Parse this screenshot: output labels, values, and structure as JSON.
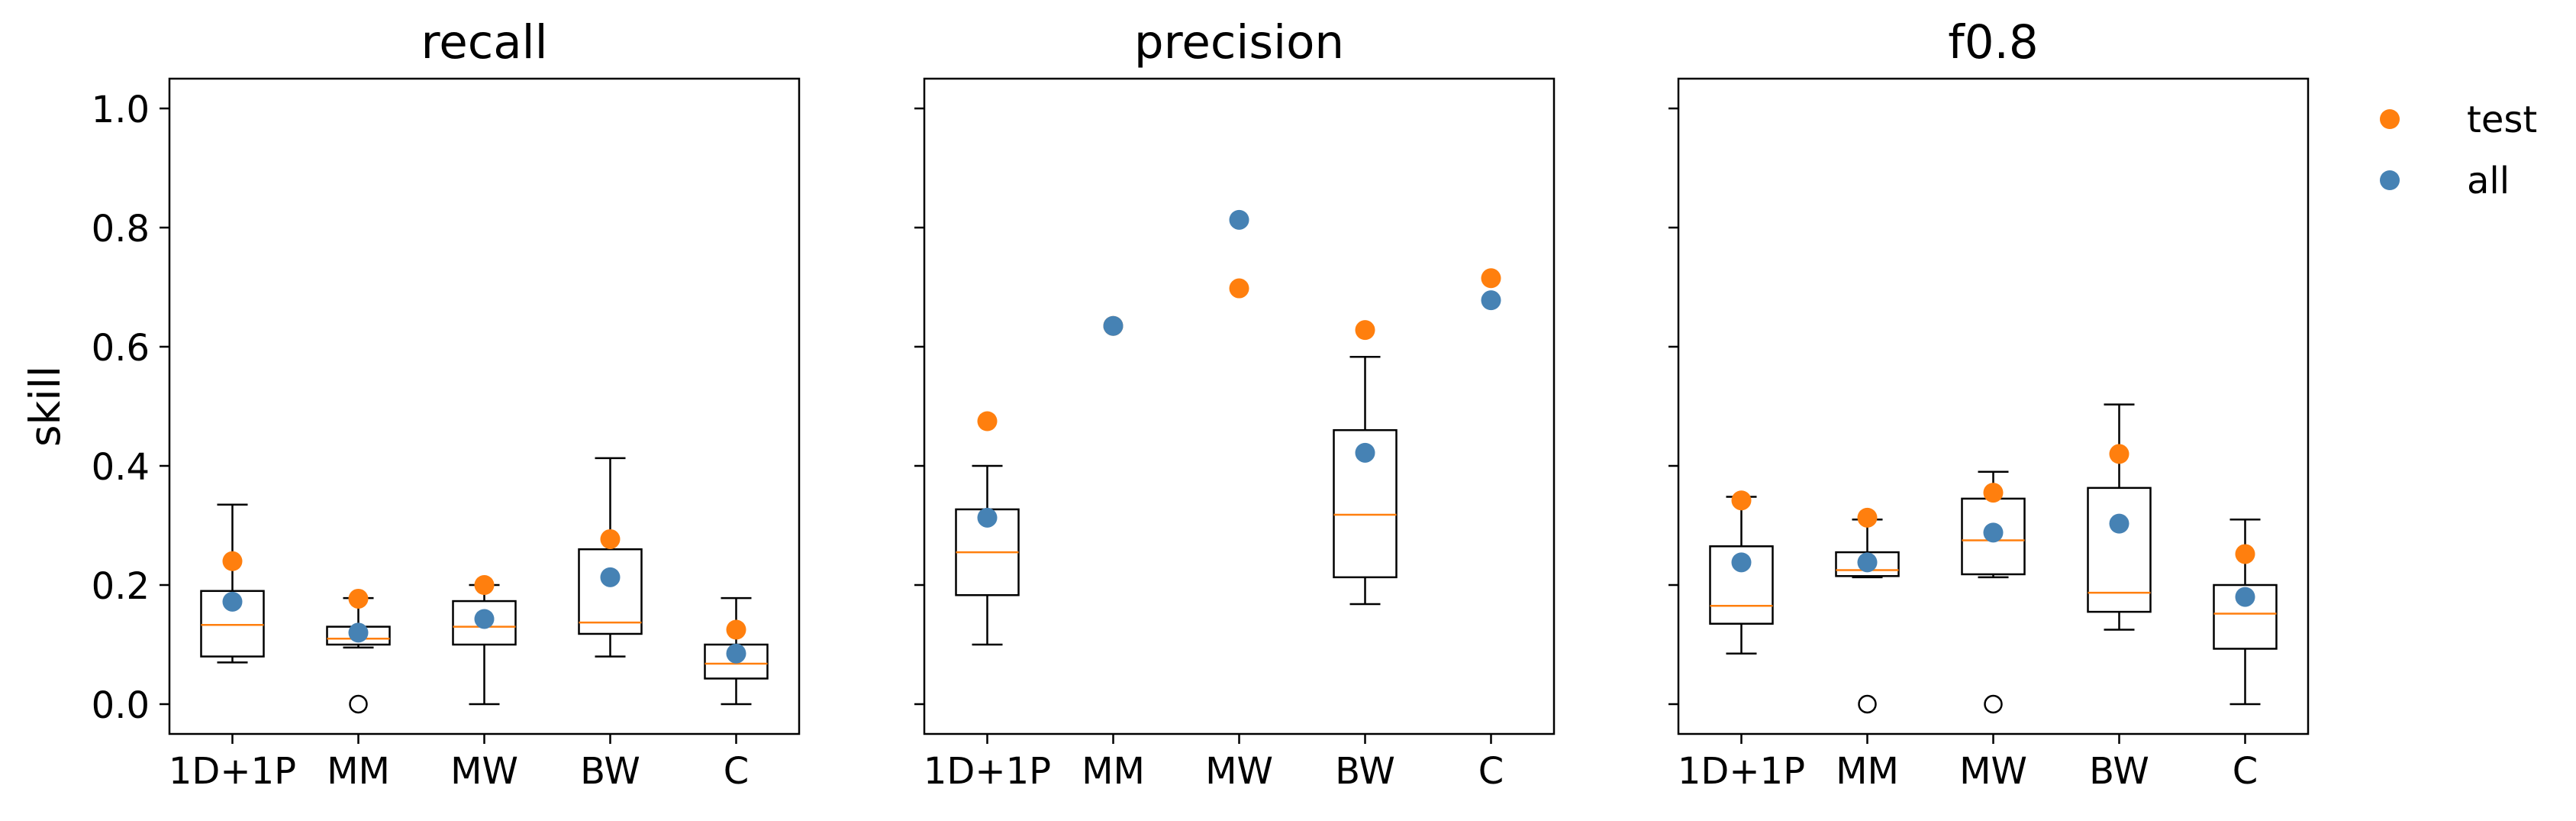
{
  "chart_data": {
    "type": "box",
    "y_label": "skill",
    "y_range": [
      -0.05,
      1.05
    ],
    "y_ticks": [
      0.0,
      0.2,
      0.4,
      0.6,
      0.8,
      1.0
    ],
    "y_tick_labels": [
      "0.0",
      "0.2",
      "0.4",
      "0.6",
      "0.8",
      "1.0"
    ],
    "categories": [
      "1D+1P",
      "MM",
      "MW",
      "BW",
      "C"
    ],
    "legend": {
      "placement": "top-right, outside plot area",
      "entries": [
        {
          "label": "test",
          "color": "#ff7f0e"
        },
        {
          "label": "all",
          "color": "#4682b4"
        }
      ]
    },
    "colors": {
      "median": "#ff7f0e",
      "test": "#ff7f0e",
      "all": "#4682b4",
      "box": "#000000"
    },
    "panels": [
      {
        "title": "recall",
        "boxes": [
          {
            "whisker_low": 0.07,
            "q1": 0.08,
            "median": 0.133,
            "q3": 0.19,
            "whisker_high": 0.335,
            "outliers": []
          },
          {
            "whisker_low": 0.095,
            "q1": 0.1,
            "median": 0.11,
            "q3": 0.13,
            "whisker_high": 0.178,
            "outliers": [
              0.0
            ]
          },
          {
            "whisker_low": 0.0,
            "q1": 0.1,
            "median": 0.13,
            "q3": 0.173,
            "whisker_high": 0.2,
            "outliers": []
          },
          {
            "whisker_low": 0.08,
            "q1": 0.118,
            "median": 0.137,
            "q3": 0.26,
            "whisker_high": 0.413,
            "outliers": []
          },
          {
            "whisker_low": 0.0,
            "q1": 0.043,
            "median": 0.068,
            "q3": 0.1,
            "whisker_high": 0.178,
            "outliers": []
          }
        ],
        "points": {
          "test": [
            0.24,
            0.177,
            0.2,
            0.277,
            0.125
          ],
          "all": [
            0.172,
            0.12,
            0.143,
            0.213,
            0.085
          ]
        }
      },
      {
        "title": "precision",
        "boxes": [
          {
            "whisker_low": 0.1,
            "q1": 0.183,
            "median": 0.255,
            "q3": 0.327,
            "whisker_high": 0.4,
            "outliers": []
          },
          null,
          null,
          {
            "whisker_low": 0.168,
            "q1": 0.213,
            "median": 0.318,
            "q3": 0.46,
            "whisker_high": 0.583,
            "outliers": []
          },
          null
        ],
        "points": {
          "test": [
            0.475,
            0.635,
            0.698,
            0.628,
            0.715
          ],
          "all": [
            0.313,
            0.635,
            0.813,
            0.422,
            0.678
          ]
        }
      },
      {
        "title": "f0.8",
        "boxes": [
          {
            "whisker_low": 0.085,
            "q1": 0.135,
            "median": 0.165,
            "q3": 0.265,
            "whisker_high": 0.348,
            "outliers": []
          },
          {
            "whisker_low": 0.213,
            "q1": 0.215,
            "median": 0.225,
            "q3": 0.255,
            "whisker_high": 0.31,
            "outliers": [
              0.0
            ]
          },
          {
            "whisker_low": 0.213,
            "q1": 0.218,
            "median": 0.275,
            "q3": 0.345,
            "whisker_high": 0.39,
            "outliers": [
              0.0
            ]
          },
          {
            "whisker_low": 0.125,
            "q1": 0.155,
            "median": 0.187,
            "q3": 0.363,
            "whisker_high": 0.503,
            "outliers": []
          },
          {
            "whisker_low": 0.0,
            "q1": 0.093,
            "median": 0.152,
            "q3": 0.2,
            "whisker_high": 0.31,
            "outliers": []
          }
        ],
        "points": {
          "test": [
            0.342,
            0.313,
            0.355,
            0.42,
            0.252
          ],
          "all": [
            0.238,
            0.238,
            0.288,
            0.303,
            0.18
          ]
        }
      }
    ]
  }
}
